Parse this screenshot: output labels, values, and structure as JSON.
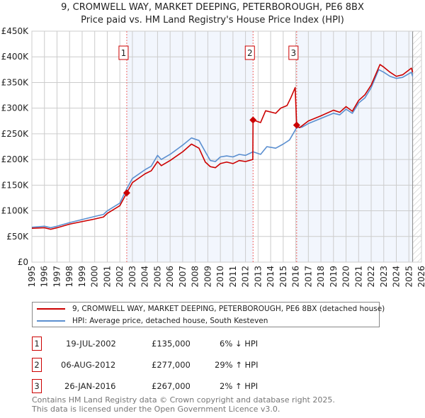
{
  "chart_data": {
    "type": "line",
    "title": "9, CROMWELL WAY, MARKET DEEPING, PETERBOROUGH, PE6 8BX",
    "subtitle": "Price paid vs. HM Land Registry's House Price Index (HPI)",
    "xlim": [
      1995,
      2026
    ],
    "ylim": [
      0,
      450000
    ],
    "x_ticks": [
      "1995",
      "1996",
      "1997",
      "1998",
      "1999",
      "2000",
      "2001",
      "2002",
      "2003",
      "2004",
      "2005",
      "2006",
      "2007",
      "2008",
      "2009",
      "2010",
      "2011",
      "2012",
      "2013",
      "2014",
      "2015",
      "2016",
      "2017",
      "2018",
      "2019",
      "2020",
      "2021",
      "2022",
      "2023",
      "2024",
      "2025",
      "2026"
    ],
    "y_ticks": [
      {
        "value": 0,
        "label": "£0"
      },
      {
        "value": 50000,
        "label": "£50K"
      },
      {
        "value": 100000,
        "label": "£100K"
      },
      {
        "value": 150000,
        "label": "£150K"
      },
      {
        "value": 200000,
        "label": "£200K"
      },
      {
        "value": 250000,
        "label": "£250K"
      },
      {
        "value": 300000,
        "label": "£300K"
      },
      {
        "value": 350000,
        "label": "£350K"
      },
      {
        "value": 400000,
        "label": "£400K"
      },
      {
        "value": 450000,
        "label": "£450K"
      }
    ],
    "grid": true,
    "shaded_periods": [
      [
        2002.55,
        2012.6
      ],
      [
        2016.07,
        2025.3
      ]
    ],
    "forecast_hatch_from": 2025.3,
    "series": [
      {
        "name": "9, CROMWELL WAY, MARKET DEEPING, PETERBOROUGH, PE6 8BX (detached house)",
        "color": "#cc0000",
        "points": [
          [
            1995,
            66
          ],
          [
            1996,
            67
          ],
          [
            1996.5,
            64
          ],
          [
            1997,
            67
          ],
          [
            1998,
            74
          ],
          [
            1999,
            79
          ],
          [
            2000,
            84
          ],
          [
            2000.7,
            88
          ],
          [
            2001,
            95
          ],
          [
            2002,
            110
          ],
          [
            2002.55,
            135
          ],
          [
            2003,
            155
          ],
          [
            2004,
            172
          ],
          [
            2004.5,
            178
          ],
          [
            2005,
            196
          ],
          [
            2005.3,
            188
          ],
          [
            2006,
            198
          ],
          [
            2007,
            215
          ],
          [
            2007.7,
            230
          ],
          [
            2008.3,
            222
          ],
          [
            2008.8,
            195
          ],
          [
            2009.2,
            186
          ],
          [
            2009.6,
            184
          ],
          [
            2010,
            192
          ],
          [
            2010.5,
            195
          ],
          [
            2011,
            192
          ],
          [
            2011.5,
            198
          ],
          [
            2012,
            196
          ],
          [
            2012.58,
            200
          ],
          [
            2012.6,
            277
          ],
          [
            2013.2,
            272
          ],
          [
            2013.6,
            295
          ],
          [
            2014.4,
            290
          ],
          [
            2014.8,
            300
          ],
          [
            2015.3,
            305
          ],
          [
            2015.6,
            320
          ],
          [
            2015.95,
            340
          ],
          [
            2016.07,
            267
          ],
          [
            2016.3,
            262
          ],
          [
            2017,
            275
          ],
          [
            2018,
            285
          ],
          [
            2019,
            296
          ],
          [
            2019.5,
            292
          ],
          [
            2020,
            303
          ],
          [
            2020.5,
            294
          ],
          [
            2021,
            315
          ],
          [
            2021.5,
            326
          ],
          [
            2022,
            345
          ],
          [
            2022.7,
            385
          ],
          [
            2023,
            380
          ],
          [
            2023.5,
            370
          ],
          [
            2024,
            362
          ],
          [
            2024.5,
            365
          ],
          [
            2025.2,
            378
          ],
          [
            2025.3,
            370
          ]
        ]
      },
      {
        "name": "HPI: Average price, detached house, South Kesteven",
        "color": "#5b8fd0",
        "points": [
          [
            1995,
            68
          ],
          [
            1996,
            70
          ],
          [
            1996.5,
            67
          ],
          [
            1997,
            70
          ],
          [
            1998,
            77
          ],
          [
            1999,
            83
          ],
          [
            2000,
            89
          ],
          [
            2000.7,
            93
          ],
          [
            2001,
            100
          ],
          [
            2002,
            115
          ],
          [
            2002.55,
            143
          ],
          [
            2003,
            163
          ],
          [
            2004,
            180
          ],
          [
            2004.5,
            187
          ],
          [
            2005,
            208
          ],
          [
            2005.3,
            200
          ],
          [
            2006,
            210
          ],
          [
            2007,
            228
          ],
          [
            2007.7,
            242
          ],
          [
            2008.3,
            237
          ],
          [
            2008.8,
            215
          ],
          [
            2009.2,
            198
          ],
          [
            2009.6,
            196
          ],
          [
            2010,
            205
          ],
          [
            2010.5,
            207
          ],
          [
            2011,
            205
          ],
          [
            2011.5,
            210
          ],
          [
            2012,
            208
          ],
          [
            2012.6,
            215
          ],
          [
            2013.2,
            210
          ],
          [
            2013.7,
            225
          ],
          [
            2014.4,
            222
          ],
          [
            2015,
            230
          ],
          [
            2015.5,
            238
          ],
          [
            2016.07,
            262
          ],
          [
            2016.5,
            263
          ],
          [
            2017,
            270
          ],
          [
            2018,
            280
          ],
          [
            2019,
            290
          ],
          [
            2019.5,
            287
          ],
          [
            2020,
            298
          ],
          [
            2020.5,
            290
          ],
          [
            2021,
            310
          ],
          [
            2021.5,
            320
          ],
          [
            2022,
            340
          ],
          [
            2022.6,
            375
          ],
          [
            2023,
            370
          ],
          [
            2023.5,
            362
          ],
          [
            2024,
            358
          ],
          [
            2024.5,
            360
          ],
          [
            2025.2,
            370
          ],
          [
            2025.3,
            362
          ]
        ]
      }
    ],
    "sales": [
      {
        "label": "1",
        "x": 2002.55,
        "value": 135
      },
      {
        "label": "2",
        "x": 2012.6,
        "value": 277
      },
      {
        "label": "3",
        "x": 2016.07,
        "value": 267
      }
    ],
    "value_unit": "thousands GBP in points"
  },
  "legend": {
    "property": "9, CROMWELL WAY, MARKET DEEPING, PETERBOROUGH, PE6 8BX (detached house)",
    "hpi": "HPI: Average price, detached house, South Kesteven"
  },
  "transactions": [
    {
      "num": "1",
      "date": "19-JUL-2002",
      "price": "£135,000",
      "hpi": "6% ↓ HPI"
    },
    {
      "num": "2",
      "date": "06-AUG-2012",
      "price": "£277,000",
      "hpi": "29% ↑ HPI"
    },
    {
      "num": "3",
      "date": "26-JAN-2016",
      "price": "£267,000",
      "hpi": "2% ↑ HPI"
    }
  ],
  "footer": {
    "line1": "Contains HM Land Registry data © Crown copyright and database right 2025.",
    "line2": "This data is licensed under the Open Government Licence v3.0."
  }
}
